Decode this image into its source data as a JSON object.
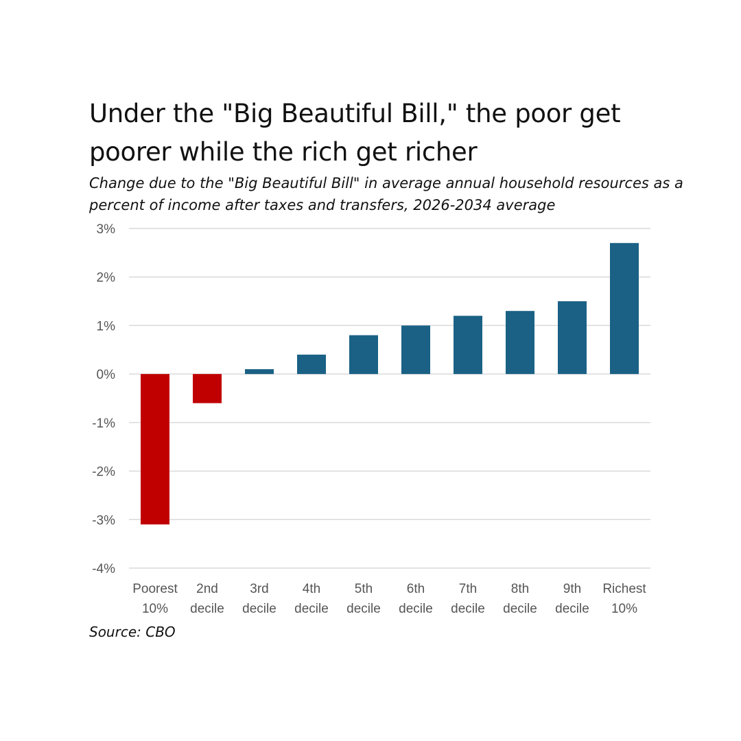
{
  "chart_data": {
    "type": "bar",
    "title": "Under the \"Big Beautiful Bill,\" the poor get poorer while the rich get richer",
    "subtitle": "Change due to the \"Big Beautiful Bill\" in average annual household resources as a percent of income after taxes and transfers, 2026-2034 average",
    "source": "Source: CBO",
    "categories": [
      [
        "Poorest",
        "10%"
      ],
      [
        "2nd",
        "decile"
      ],
      [
        "3rd",
        "decile"
      ],
      [
        "4th",
        "decile"
      ],
      [
        "5th",
        "decile"
      ],
      [
        "6th",
        "decile"
      ],
      [
        "7th",
        "decile"
      ],
      [
        "8th",
        "decile"
      ],
      [
        "9th",
        "decile"
      ],
      [
        "Richest",
        "10%"
      ]
    ],
    "values": [
      -3.1,
      -0.6,
      0.1,
      0.4,
      0.8,
      1.0,
      1.2,
      1.3,
      1.5,
      2.7
    ],
    "ylim": [
      -4,
      3
    ],
    "yticks": [
      3,
      2,
      1,
      0,
      -1,
      -2,
      -3,
      -4
    ],
    "ytick_labels": [
      "3%",
      "2%",
      "1%",
      "0%",
      "-1%",
      "-2%",
      "-3%",
      "-4%"
    ],
    "grid": true,
    "colors": {
      "negative": "#c00000",
      "positive": "#1a6185",
      "grid": "#d9d9d9"
    }
  }
}
